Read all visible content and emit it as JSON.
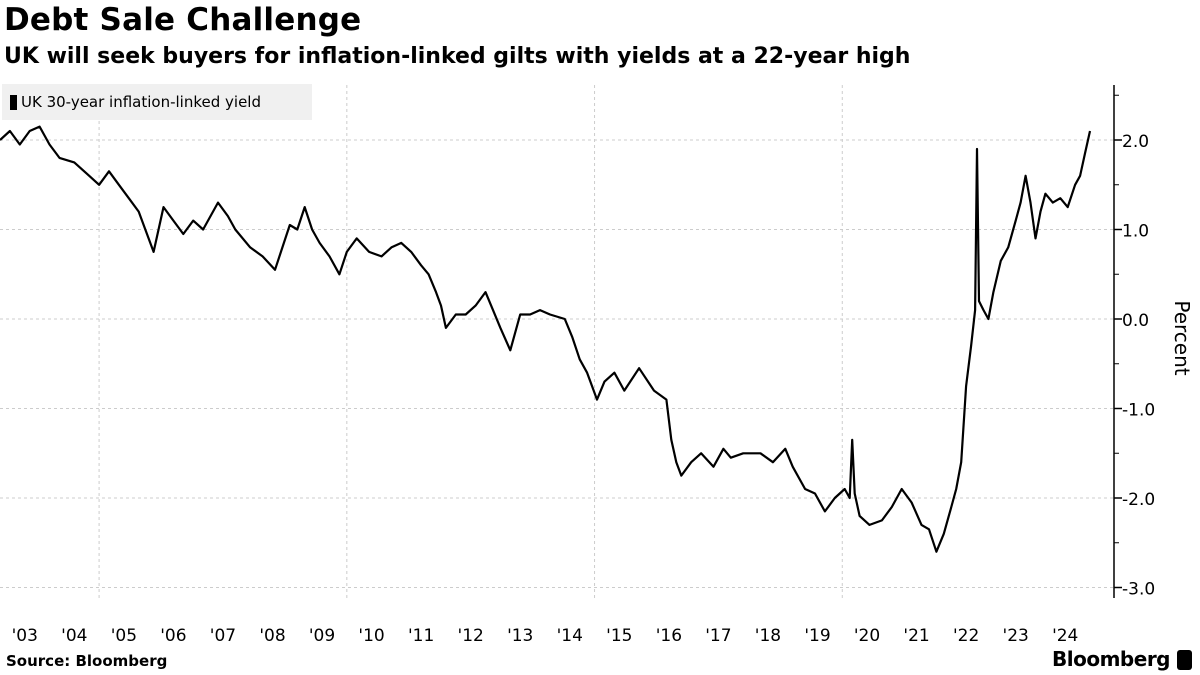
{
  "header": {
    "title": "Debt Sale Challenge",
    "subtitle": "UK will seek buyers for inflation-linked gilts with yields at a 22-year high"
  },
  "footer": {
    "source": "Source: Bloomberg",
    "brand": "Bloomberg"
  },
  "colors": {
    "line": "#000000",
    "grid": "#cccccc",
    "legend_bg": "#f0f0f0"
  },
  "chart_data": {
    "type": "line",
    "title": "Debt Sale Challenge",
    "subtitle": "UK will seek buyers for inflation-linked gilts with yields at a 22-year high",
    "xlabel": "",
    "ylabel": "Percent",
    "ylim": [
      -3.1,
      2.6
    ],
    "xlim": [
      2003.0,
      2025.0
    ],
    "y_axis_position": "right",
    "y_ticks": [
      2.0,
      1.0,
      0.0,
      -1.0,
      -2.0,
      -3.0
    ],
    "y_tick_labels": [
      "2.0",
      "1.0",
      "0.0",
      "-1.0",
      "-2.0",
      "-3.0"
    ],
    "x_tick_labels": [
      "'03",
      "'04",
      "'05",
      "'06",
      "'07",
      "'08",
      "'09",
      "'10",
      "'11",
      "'12",
      "'13",
      "'14",
      "'15",
      "'16",
      "'17",
      "'18",
      "'19",
      "'20",
      "'21",
      "'22",
      "'23",
      "'24"
    ],
    "x_gridlines_years": [
      2005,
      2010,
      2015,
      2020
    ],
    "grid": true,
    "legend": {
      "placement": "top-left",
      "entries": [
        "UK 30-year inflation-linked yield"
      ]
    },
    "series": [
      {
        "name": "UK 30-year inflation-linked yield",
        "points": [
          [
            2003.0,
            2.0
          ],
          [
            2003.2,
            2.1
          ],
          [
            2003.4,
            1.95
          ],
          [
            2003.6,
            2.1
          ],
          [
            2003.8,
            2.15
          ],
          [
            2004.0,
            1.95
          ],
          [
            2004.2,
            1.8
          ],
          [
            2004.5,
            1.75
          ],
          [
            2004.8,
            1.6
          ],
          [
            2005.0,
            1.5
          ],
          [
            2005.2,
            1.65
          ],
          [
            2005.4,
            1.5
          ],
          [
            2005.6,
            1.35
          ],
          [
            2005.8,
            1.2
          ],
          [
            2006.0,
            0.9
          ],
          [
            2006.1,
            0.75
          ],
          [
            2006.3,
            1.25
          ],
          [
            2006.5,
            1.1
          ],
          [
            2006.7,
            0.95
          ],
          [
            2006.9,
            1.1
          ],
          [
            2007.1,
            1.0
          ],
          [
            2007.4,
            1.3
          ],
          [
            2007.6,
            1.15
          ],
          [
            2007.75,
            1.0
          ],
          [
            2008.05,
            0.8
          ],
          [
            2008.3,
            0.7
          ],
          [
            2008.55,
            0.55
          ],
          [
            2008.7,
            0.8
          ],
          [
            2008.85,
            1.05
          ],
          [
            2009.0,
            1.0
          ],
          [
            2009.15,
            1.25
          ],
          [
            2009.3,
            1.0
          ],
          [
            2009.45,
            0.85
          ],
          [
            2009.65,
            0.7
          ],
          [
            2009.85,
            0.5
          ],
          [
            2010.0,
            0.75
          ],
          [
            2010.2,
            0.9
          ],
          [
            2010.45,
            0.75
          ],
          [
            2010.7,
            0.7
          ],
          [
            2010.9,
            0.8
          ],
          [
            2011.1,
            0.85
          ],
          [
            2011.3,
            0.75
          ],
          [
            2011.5,
            0.6
          ],
          [
            2011.65,
            0.5
          ],
          [
            2011.8,
            0.3
          ],
          [
            2011.9,
            0.15
          ],
          [
            2012.0,
            -0.1
          ],
          [
            2012.2,
            0.05
          ],
          [
            2012.4,
            0.05
          ],
          [
            2012.6,
            0.15
          ],
          [
            2012.8,
            0.3
          ],
          [
            2012.95,
            0.1
          ],
          [
            2013.1,
            -0.1
          ],
          [
            2013.3,
            -0.35
          ],
          [
            2013.5,
            0.05
          ],
          [
            2013.7,
            0.05
          ],
          [
            2013.9,
            0.1
          ],
          [
            2014.1,
            0.05
          ],
          [
            2014.4,
            0.0
          ],
          [
            2014.55,
            -0.2
          ],
          [
            2014.7,
            -0.45
          ],
          [
            2014.85,
            -0.6
          ],
          [
            2015.05,
            -0.9
          ],
          [
            2015.2,
            -0.7
          ],
          [
            2015.4,
            -0.6
          ],
          [
            2015.6,
            -0.8
          ],
          [
            2015.9,
            -0.55
          ],
          [
            2016.2,
            -0.8
          ],
          [
            2016.45,
            -0.9
          ],
          [
            2016.55,
            -1.35
          ],
          [
            2016.65,
            -1.6
          ],
          [
            2016.75,
            -1.75
          ],
          [
            2016.95,
            -1.6
          ],
          [
            2017.15,
            -1.5
          ],
          [
            2017.4,
            -1.65
          ],
          [
            2017.6,
            -1.45
          ],
          [
            2017.75,
            -1.55
          ],
          [
            2018.0,
            -1.5
          ],
          [
            2018.35,
            -1.5
          ],
          [
            2018.6,
            -1.6
          ],
          [
            2018.85,
            -1.45
          ],
          [
            2019.0,
            -1.65
          ],
          [
            2019.25,
            -1.9
          ],
          [
            2019.45,
            -1.95
          ],
          [
            2019.65,
            -2.15
          ],
          [
            2019.85,
            -2.0
          ],
          [
            2020.05,
            -1.9
          ],
          [
            2020.15,
            -2.0
          ],
          [
            2020.2,
            -1.35
          ],
          [
            2020.25,
            -1.95
          ],
          [
            2020.35,
            -2.2
          ],
          [
            2020.55,
            -2.3
          ],
          [
            2020.8,
            -2.25
          ],
          [
            2021.0,
            -2.1
          ],
          [
            2021.2,
            -1.9
          ],
          [
            2021.4,
            -2.05
          ],
          [
            2021.6,
            -2.3
          ],
          [
            2021.75,
            -2.35
          ],
          [
            2021.9,
            -2.6
          ],
          [
            2022.05,
            -2.4
          ],
          [
            2022.2,
            -2.1
          ],
          [
            2022.3,
            -1.9
          ],
          [
            2022.4,
            -1.6
          ],
          [
            2022.5,
            -0.75
          ],
          [
            2022.6,
            -0.3
          ],
          [
            2022.68,
            0.1
          ],
          [
            2022.72,
            1.9
          ],
          [
            2022.76,
            0.2
          ],
          [
            2022.85,
            0.1
          ],
          [
            2022.95,
            0.0
          ],
          [
            2023.05,
            0.3
          ],
          [
            2023.2,
            0.65
          ],
          [
            2023.35,
            0.8
          ],
          [
            2023.5,
            1.1
          ],
          [
            2023.6,
            1.3
          ],
          [
            2023.7,
            1.6
          ],
          [
            2023.8,
            1.3
          ],
          [
            2023.9,
            0.9
          ],
          [
            2024.0,
            1.2
          ],
          [
            2024.1,
            1.4
          ],
          [
            2024.25,
            1.3
          ],
          [
            2024.4,
            1.35
          ],
          [
            2024.55,
            1.25
          ],
          [
            2024.7,
            1.5
          ],
          [
            2024.8,
            1.6
          ],
          [
            2024.9,
            1.85
          ],
          [
            2025.0,
            2.1
          ]
        ]
      }
    ]
  }
}
